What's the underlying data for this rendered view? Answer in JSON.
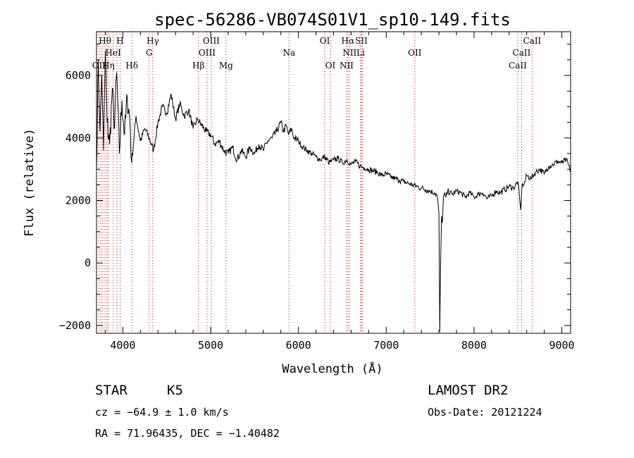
{
  "chart_data": {
    "type": "line",
    "title": "spec-56286-VB074S01V1_sp10-149.fits",
    "xlabel": "Wavelength (Å)",
    "ylabel": "Flux (relative)",
    "xlim": [
      3700,
      9100
    ],
    "ylim": [
      -2250,
      7400
    ],
    "x_ticks": [
      4000,
      5000,
      6000,
      7000,
      8000,
      9000
    ],
    "x_tick_labels": [
      "4000",
      "5000",
      "6000",
      "7000",
      "8000",
      "9000"
    ],
    "y_ticks": [
      -2000,
      0,
      2000,
      4000,
      6000
    ],
    "y_tick_labels": [
      "−2000",
      "0",
      "2000",
      "4000",
      "6000"
    ],
    "grid": false,
    "series": [
      {
        "color": "#000000",
        "x": [
          3700,
          3720,
          3740,
          3760,
          3780,
          3800,
          3820,
          3850,
          3880,
          3900,
          3930,
          3960,
          3990,
          4020,
          4050,
          4080,
          4100,
          4150,
          4200,
          4250,
          4300,
          4350,
          4400,
          4450,
          4500,
          4550,
          4600,
          4650,
          4700,
          4750,
          4800,
          4850,
          4900,
          4950,
          5000,
          5050,
          5100,
          5150,
          5200,
          5250,
          5300,
          5350,
          5400,
          5450,
          5500,
          5550,
          5600,
          5650,
          5700,
          5750,
          5800,
          5830,
          5860,
          5890,
          5920,
          5950,
          6000,
          6050,
          6100,
          6150,
          6200,
          6250,
          6300,
          6350,
          6400,
          6450,
          6500,
          6550,
          6600,
          6650,
          6700,
          6750,
          6800,
          6850,
          6900,
          6950,
          7000,
          7050,
          7100,
          7150,
          7200,
          7250,
          7300,
          7350,
          7400,
          7450,
          7500,
          7550,
          7580,
          7600,
          7610,
          7620,
          7630,
          7640,
          7650,
          7660,
          7680,
          7700,
          7750,
          7800,
          7850,
          7900,
          7950,
          8000,
          8050,
          8100,
          8150,
          8200,
          8250,
          8300,
          8350,
          8400,
          8450,
          8500,
          8530,
          8550,
          8570,
          8600,
          8650,
          8700,
          8750,
          8800,
          8850,
          8900,
          8950,
          9000,
          9050,
          9100
        ],
        "y": [
          3000,
          6500,
          4200,
          6000,
          3600,
          6800,
          4500,
          3800,
          5600,
          4300,
          6100,
          3500,
          5200,
          4100,
          5300,
          4600,
          3200,
          4700,
          3900,
          4300,
          4000,
          3600,
          4500,
          5000,
          4800,
          5400,
          4600,
          5100,
          4700,
          4900,
          4300,
          4600,
          4400,
          4200,
          4100,
          3800,
          3900,
          3600,
          3500,
          3700,
          3300,
          3600,
          3400,
          3700,
          3500,
          3800,
          3600,
          3900,
          4000,
          4200,
          4500,
          4200,
          4400,
          4100,
          4300,
          4000,
          3900,
          3700,
          3600,
          3500,
          3400,
          3300,
          3400,
          3200,
          3300,
          3350,
          3200,
          3300,
          3150,
          3250,
          3100,
          3050,
          3000,
          2950,
          2900,
          2800,
          2850,
          2750,
          2700,
          2650,
          2600,
          2550,
          2500,
          2450,
          2400,
          2350,
          2300,
          2250,
          2150,
          1600,
          -2200,
          0,
          1500,
          1300,
          2000,
          2200,
          2100,
          2300,
          2200,
          2300,
          2250,
          2100,
          2250,
          2100,
          2200,
          2250,
          2050,
          2150,
          2300,
          2250,
          2350,
          2450,
          2400,
          2600,
          1700,
          2550,
          2500,
          2800,
          2700,
          2900,
          3000,
          2850,
          3100,
          3150,
          3250,
          3200,
          3300,
          2950
        ]
      }
    ],
    "lines": {
      "color": "#cc0000",
      "x": [
        3727,
        3750,
        3771,
        3798,
        3820,
        3835,
        3889,
        3934,
        3969,
        4102,
        4300,
        4341,
        4861,
        4959,
        5007,
        5175,
        5893,
        6300,
        6364,
        6548,
        6563,
        6583,
        6708,
        6717,
        6731,
        7325,
        8498,
        8542,
        8662
      ]
    },
    "line_labels": [
      {
        "text": "Hθ",
        "x": 3797,
        "row": 1
      },
      {
        "text": "H",
        "x": 3969,
        "row": 1
      },
      {
        "text": "Hγ",
        "x": 4341,
        "row": 1
      },
      {
        "text": "OIII",
        "x": 5007,
        "row": 1
      },
      {
        "text": "OI",
        "x": 6300,
        "row": 1
      },
      {
        "text": "Hα",
        "x": 6563,
        "row": 1
      },
      {
        "text": "SII",
        "x": 6717,
        "row": 1
      },
      {
        "text": "CaII",
        "x": 8662,
        "row": 1
      },
      {
        "text": "HeI",
        "x": 3889,
        "row": 2
      },
      {
        "text": "G",
        "x": 4300,
        "row": 2
      },
      {
        "text": "OIII",
        "x": 4959,
        "row": 2
      },
      {
        "text": "Na",
        "x": 5893,
        "row": 2
      },
      {
        "text": "NII",
        "x": 6583,
        "row": 2
      },
      {
        "text": "Li",
        "x": 6708,
        "row": 2
      },
      {
        "text": "OII",
        "x": 7325,
        "row": 2
      },
      {
        "text": "CaII",
        "x": 8542,
        "row": 2
      },
      {
        "text": "OII",
        "x": 3727,
        "row": 3
      },
      {
        "text": "Hη",
        "x": 3835,
        "row": 3
      },
      {
        "text": "Hδ",
        "x": 4102,
        "row": 3
      },
      {
        "text": "Hβ",
        "x": 4861,
        "row": 3
      },
      {
        "text": "Mg",
        "x": 5175,
        "row": 3
      },
      {
        "text": "OI",
        "x": 6364,
        "row": 3
      },
      {
        "text": "NII",
        "x": 6548,
        "row": 3
      },
      {
        "text": "CaII",
        "x": 8498,
        "row": 3
      }
    ]
  },
  "info": {
    "class": "STAR",
    "subclass": "K5",
    "survey": "LAMOST DR2",
    "cz": "cz = −64.9 ± 1.0 km/s",
    "obs_date": "Obs-Date: 20121224",
    "coords": "RA =  71.96435, DEC =  −1.40482"
  }
}
